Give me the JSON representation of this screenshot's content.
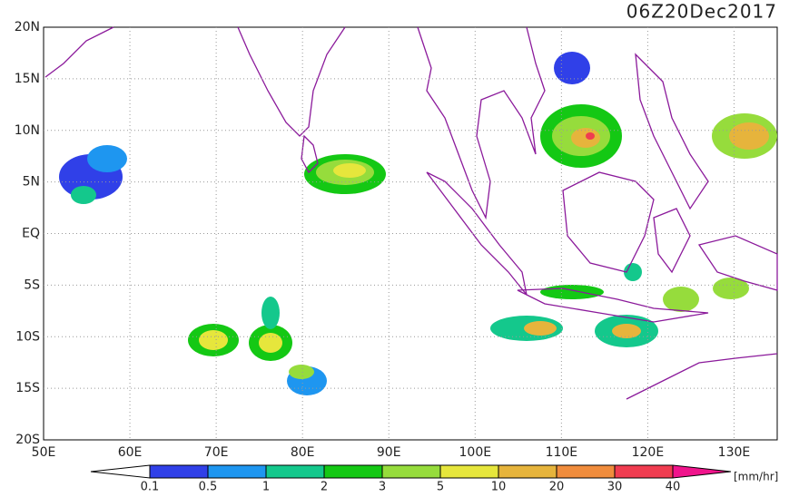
{
  "title": "06Z20Dec2017",
  "x_labels": [
    "50E",
    "60E",
    "70E",
    "80E",
    "90E",
    "100E",
    "110E",
    "120E",
    "130E"
  ],
  "y_labels": [
    "20N",
    "15N",
    "10N",
    "5N",
    "EQ",
    "5S",
    "10S",
    "15S",
    "20S"
  ],
  "colorbar": {
    "boundaries": [
      0.1,
      0.5,
      1,
      2,
      3,
      5,
      10,
      20,
      30,
      40
    ],
    "colors": [
      "#ffffff",
      "#3040e8",
      "#1e96f0",
      "#14c88c",
      "#14c814",
      "#96dc3c",
      "#e6e63c",
      "#e6b43c",
      "#f08c3c",
      "#f03c50",
      "#f0148c"
    ],
    "unit": "[mm/hr]"
  }
}
